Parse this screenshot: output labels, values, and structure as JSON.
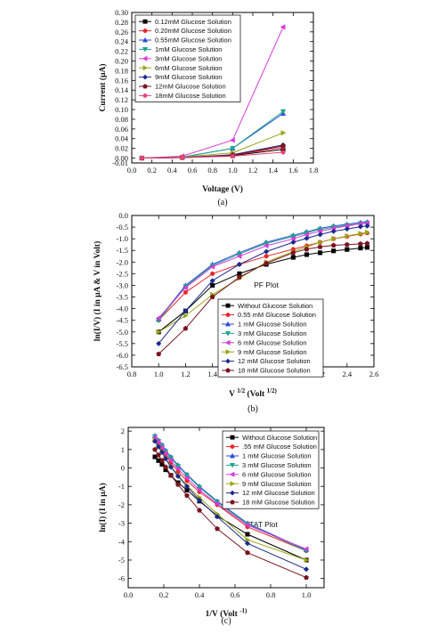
{
  "chart_data": [
    {
      "type": "line",
      "xlabel": "Voltage (V)",
      "ylabel": "Current (μA)",
      "caption": "(a)",
      "xlim": [
        0,
        1.8
      ],
      "ylim": [
        -0.01,
        0.3
      ],
      "xticks": [
        "0.0",
        "0.2",
        "0.4",
        "0.6",
        "0.8",
        "1.0",
        "1.2",
        "1.4",
        "1.6",
        "1.8"
      ],
      "yticks": [
        "-0.01",
        "0.00",
        "0.02",
        "0.04",
        "0.06",
        "0.08",
        "0.10",
        "0.12",
        "0.14",
        "0.16",
        "0.18",
        "0.20",
        "0.22",
        "0.24",
        "0.26",
        "0.28",
        "0.30"
      ],
      "legend_position": "top-left",
      "series": [
        {
          "name": "0.12mM Glucose Solution",
          "color": "#000000",
          "marker": "square",
          "x": [
            0.1,
            0.5,
            1.0,
            1.5
          ],
          "y": [
            0.0,
            0.001,
            0.005,
            0.018
          ]
        },
        {
          "name": "0.20mM Glucose Solution",
          "color": "#e8262b",
          "marker": "circle",
          "x": [
            0.1,
            0.5,
            1.0,
            1.5
          ],
          "y": [
            0.0,
            0.001,
            0.006,
            0.022
          ]
        },
        {
          "name": "0.55mM Glucose Solution",
          "color": "#2a4bd7",
          "marker": "triangle-up",
          "x": [
            0.1,
            0.5,
            1.0,
            1.5
          ],
          "y": [
            0.0,
            0.002,
            0.02,
            0.092
          ]
        },
        {
          "name": "1mM Glucose Solution",
          "color": "#1aa68a",
          "marker": "triangle-down",
          "x": [
            0.1,
            0.5,
            1.0,
            1.5
          ],
          "y": [
            0.0,
            0.002,
            0.02,
            0.096
          ]
        },
        {
          "name": "3mM Glucose Solution",
          "color": "#d83ad8",
          "marker": "triangle-left",
          "x": [
            0.1,
            0.5,
            1.0,
            1.5
          ],
          "y": [
            0.0,
            0.004,
            0.037,
            0.27
          ]
        },
        {
          "name": "6mM Glucose Solution",
          "color": "#9aa516",
          "marker": "triangle-right",
          "x": [
            0.1,
            0.5,
            1.0,
            1.5
          ],
          "y": [
            0.0,
            0.002,
            0.011,
            0.052
          ]
        },
        {
          "name": "9mM Glucose Solution",
          "color": "#1b2a8c",
          "marker": "diamond",
          "x": [
            0.1,
            0.5,
            1.0,
            1.5
          ],
          "y": [
            0.0,
            0.001,
            0.007,
            0.027
          ]
        },
        {
          "name": "12mM Glucose Solution",
          "color": "#7a1420",
          "marker": "pentagon",
          "x": [
            0.1,
            0.5,
            1.0,
            1.5
          ],
          "y": [
            0.0,
            0.001,
            0.006,
            0.025
          ]
        },
        {
          "name": "18mM Glucose Solution",
          "color": "#e8437a",
          "marker": "circle",
          "x": [
            0.1,
            0.5,
            1.0,
            1.5
          ],
          "y": [
            0.0,
            0.001,
            0.004,
            0.012
          ]
        }
      ]
    },
    {
      "type": "line",
      "xlabel": "V 1/2 (Volt 1/2)",
      "ylabel": "ln(I/V) (I in μA & V in Volt)",
      "caption": "(b)",
      "annotation": "PF Plot",
      "xlim": [
        0.8,
        2.6
      ],
      "ylim": [
        -6.5,
        0.0
      ],
      "xticks": [
        "0.8",
        "1.0",
        "1.2",
        "1.4",
        "1.6",
        "1.8",
        "2.0",
        "2.2",
        "2.4",
        "2.6"
      ],
      "yticks": [
        "0.0",
        "-0.5",
        "-1.0",
        "-1.5",
        "-2.0",
        "-2.5",
        "-3.0",
        "-3.5",
        "-4.0",
        "-4.5",
        "-5.0",
        "-5.5",
        "-6.0",
        "-6.5"
      ],
      "legend_position": "bottom-right",
      "series": [
        {
          "name": "Without Glucose Solution",
          "color": "#000000",
          "marker": "square",
          "x": [
            1.0,
            1.2,
            1.4,
            1.6,
            1.8,
            2.0,
            2.1,
            2.2,
            2.3,
            2.4,
            2.5,
            2.55
          ],
          "y": [
            -5.0,
            -4.1,
            -3.0,
            -2.5,
            -2.1,
            -1.8,
            -1.68,
            -1.6,
            -1.52,
            -1.46,
            -1.4,
            -1.37
          ]
        },
        {
          "name": "0.55 mM Glucose Solution",
          "color": "#e8262b",
          "marker": "circle",
          "x": [
            1.0,
            1.2,
            1.4,
            1.6,
            1.8,
            2.0,
            2.1,
            2.2,
            2.3,
            2.4,
            2.5,
            2.55
          ],
          "y": [
            -4.5,
            -3.3,
            -2.5,
            -2.1,
            -1.75,
            -1.45,
            -1.3,
            -1.15,
            -1.0,
            -0.9,
            -0.8,
            -0.75
          ]
        },
        {
          "name": "1 mM Glucose Solution",
          "color": "#2a4bd7",
          "marker": "triangle-up",
          "x": [
            1.0,
            1.2,
            1.4,
            1.6,
            1.8,
            2.0,
            2.1,
            2.2,
            2.3,
            2.4,
            2.5,
            2.55
          ],
          "y": [
            -4.45,
            -3.0,
            -2.1,
            -1.6,
            -1.15,
            -0.85,
            -0.7,
            -0.55,
            -0.45,
            -0.38,
            -0.3,
            -0.28
          ]
        },
        {
          "name": "3 mM Glucose Solution",
          "color": "#1aa68a",
          "marker": "triangle-down",
          "x": [
            1.0,
            1.2,
            1.4,
            1.6,
            1.8,
            2.0,
            2.1,
            2.2,
            2.3,
            2.4,
            2.5,
            2.55
          ],
          "y": [
            -4.5,
            -3.05,
            -2.15,
            -1.65,
            -1.2,
            -0.9,
            -0.75,
            -0.6,
            -0.5,
            -0.42,
            -0.35,
            -0.32
          ]
        },
        {
          "name": "6 mM Glucose Solution",
          "color": "#d83ad8",
          "marker": "triangle-left",
          "x": [
            1.0,
            1.2,
            1.4,
            1.6,
            1.8,
            2.0,
            2.1,
            2.2,
            2.3,
            2.4,
            2.5,
            2.55
          ],
          "y": [
            -4.4,
            -3.1,
            -2.2,
            -1.75,
            -1.3,
            -1.0,
            -0.82,
            -0.68,
            -0.55,
            -0.45,
            -0.36,
            -0.33
          ]
        },
        {
          "name": "9 mM Glucose Solution",
          "color": "#9aa516",
          "marker": "triangle-right",
          "x": [
            1.0,
            1.2,
            1.4,
            1.6,
            1.8,
            2.0,
            2.1,
            2.2,
            2.3,
            2.4,
            2.5,
            2.55
          ],
          "y": [
            -5.0,
            -4.3,
            -3.4,
            -2.7,
            -2.0,
            -1.55,
            -1.35,
            -1.15,
            -1.0,
            -0.88,
            -0.78,
            -0.72
          ]
        },
        {
          "name": "12 mM Glucose Solution",
          "color": "#1b2a8c",
          "marker": "diamond",
          "x": [
            1.0,
            1.2,
            1.4,
            1.6,
            1.8,
            2.0,
            2.1,
            2.2,
            2.3,
            2.4,
            2.5,
            2.55
          ],
          "y": [
            -5.5,
            -4.1,
            -2.8,
            -2.1,
            -1.55,
            -1.15,
            -0.98,
            -0.82,
            -0.68,
            -0.58,
            -0.48,
            -0.45
          ]
        },
        {
          "name": "18 mM Glucose Solution",
          "color": "#7a1420",
          "marker": "pentagon",
          "x": [
            1.0,
            1.2,
            1.4,
            1.6,
            1.8,
            2.0,
            2.1,
            2.2,
            2.3,
            2.4,
            2.5,
            2.55
          ],
          "y": [
            -5.95,
            -4.85,
            -3.5,
            -2.65,
            -2.05,
            -1.6,
            -1.45,
            -1.35,
            -1.28,
            -1.25,
            -1.22,
            -1.2
          ]
        }
      ]
    },
    {
      "type": "line",
      "xlabel": "1/V (Volt -1)",
      "ylabel": "ln(I) (I in μA)",
      "caption": "(c)",
      "annotation": "TAT Plot",
      "xlim": [
        0.0,
        1.1
      ],
      "ylim": [
        -6.5,
        2.2
      ],
      "xticks": [
        "0.0",
        "0.2",
        "0.4",
        "0.6",
        "0.8",
        "1.0"
      ],
      "yticks": [
        "2",
        "1",
        "0",
        "-1",
        "-2",
        "-3",
        "-4",
        "-5",
        "-6"
      ],
      "legend_position": "top-right",
      "series": [
        {
          "name": "Without Glucose Solution",
          "color": "#000000",
          "marker": "square",
          "x": [
            0.15,
            0.17,
            0.19,
            0.21,
            0.24,
            0.28,
            0.33,
            0.4,
            0.5,
            0.67,
            1.0
          ],
          "y": [
            0.6,
            0.4,
            0.2,
            -0.1,
            -0.4,
            -0.8,
            -1.2,
            -1.8,
            -2.6,
            -3.6,
            -5.0
          ]
        },
        {
          "name": ".55 mM Glucose Solution",
          "color": "#e8262b",
          "marker": "circle",
          "x": [
            0.15,
            0.17,
            0.19,
            0.21,
            0.24,
            0.28,
            0.33,
            0.4,
            0.5,
            0.67,
            1.0
          ],
          "y": [
            1.6,
            1.3,
            1.0,
            0.7,
            0.3,
            -0.2,
            -0.7,
            -1.3,
            -2.0,
            -3.2,
            -4.5
          ]
        },
        {
          "name": "1 mM Glucose Solution",
          "color": "#2a4bd7",
          "marker": "triangle-up",
          "x": [
            0.15,
            0.17,
            0.19,
            0.21,
            0.24,
            0.28,
            0.33,
            0.4,
            0.5,
            0.67,
            1.0
          ],
          "y": [
            1.75,
            1.5,
            1.25,
            0.95,
            0.6,
            0.15,
            -0.35,
            -1.0,
            -1.8,
            -3.0,
            -4.45
          ]
        },
        {
          "name": "3 mM Glucose Solution",
          "color": "#1aa68a",
          "marker": "triangle-down",
          "x": [
            0.15,
            0.17,
            0.19,
            0.21,
            0.24,
            0.28,
            0.33,
            0.4,
            0.5,
            0.67,
            1.0
          ],
          "y": [
            1.7,
            1.45,
            1.2,
            0.9,
            0.55,
            0.1,
            -0.4,
            -1.05,
            -1.85,
            -3.05,
            -4.5
          ]
        },
        {
          "name": "6 mM Glucose Solution",
          "color": "#d83ad8",
          "marker": "triangle-left",
          "x": [
            0.15,
            0.17,
            0.19,
            0.21,
            0.24,
            0.28,
            0.33,
            0.4,
            0.5,
            0.67,
            1.0
          ],
          "y": [
            1.65,
            1.4,
            1.1,
            0.8,
            0.4,
            -0.05,
            -0.55,
            -1.2,
            -1.95,
            -3.1,
            -4.4
          ]
        },
        {
          "name": "9 mM Glucose Solution",
          "color": "#9aa516",
          "marker": "triangle-right",
          "x": [
            0.15,
            0.17,
            0.19,
            0.21,
            0.24,
            0.28,
            0.33,
            0.4,
            0.5,
            0.67,
            1.0
          ],
          "y": [
            1.5,
            1.2,
            0.9,
            0.55,
            0.1,
            -0.4,
            -0.95,
            -1.6,
            -2.5,
            -3.9,
            -5.0
          ]
        },
        {
          "name": "12 mM Glucose Solution",
          "color": "#1b2a8c",
          "marker": "diamond",
          "x": [
            0.15,
            0.17,
            0.19,
            0.21,
            0.24,
            0.28,
            0.33,
            0.4,
            0.5,
            0.67,
            1.0
          ],
          "y": [
            1.45,
            1.15,
            0.85,
            0.5,
            0.05,
            -0.45,
            -1.0,
            -1.75,
            -2.65,
            -4.1,
            -5.5
          ]
        },
        {
          "name": "18 mM Glucose Solution",
          "color": "#7a1420",
          "marker": "pentagon",
          "x": [
            0.15,
            0.17,
            0.19,
            0.21,
            0.24,
            0.28,
            0.33,
            0.4,
            0.5,
            0.67,
            1.0
          ],
          "y": [
            1.0,
            0.7,
            0.4,
            0.05,
            -0.4,
            -0.9,
            -1.5,
            -2.3,
            -3.3,
            -4.6,
            -5.95
          ]
        }
      ]
    }
  ]
}
